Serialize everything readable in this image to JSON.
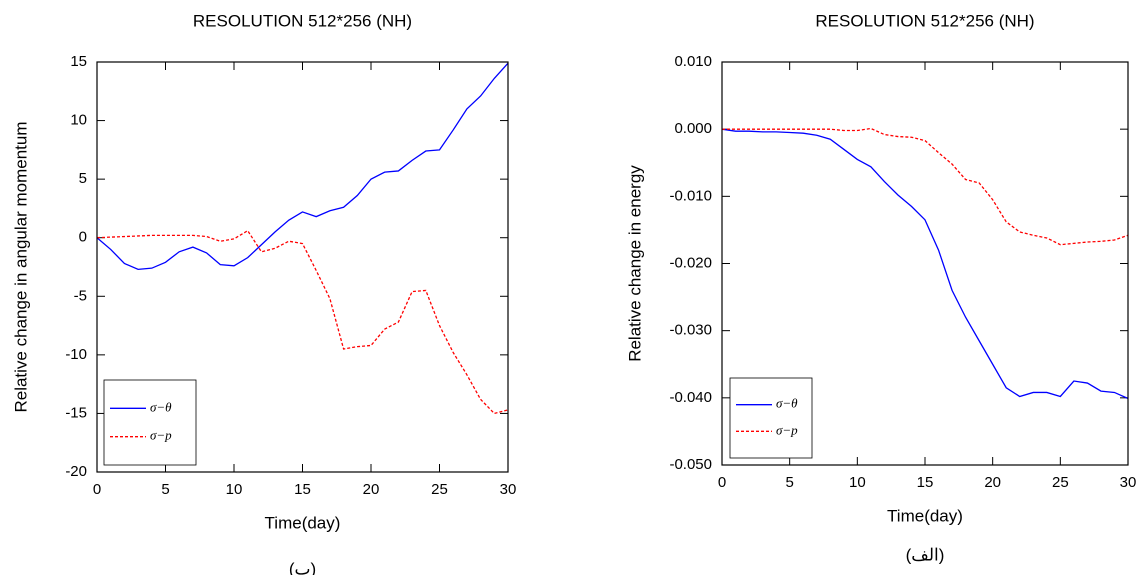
{
  "chart_data": [
    {
      "type": "line",
      "title": "RESOLUTION 512*256 (NH)",
      "x_label": "Time(day)",
      "y_label": "Relative change in angular momentum",
      "caption": "(ب)",
      "x": [
        0,
        1,
        2,
        3,
        4,
        5,
        6,
        7,
        8,
        9,
        10,
        11,
        12,
        13,
        14,
        15,
        16,
        17,
        18,
        19,
        20,
        21,
        22,
        23,
        24,
        25,
        26,
        27,
        28,
        29,
        30
      ],
      "series": [
        {
          "name": "σ−θ",
          "color": "#0000ff",
          "dash": "solid",
          "values": [
            0,
            -1,
            -2.2,
            -2.7,
            -2.6,
            -2.1,
            -1.2,
            -0.8,
            -1.3,
            -2.3,
            -2.4,
            -1.7,
            -0.6,
            0.5,
            1.5,
            2.2,
            1.8,
            2.3,
            2.6,
            3.6,
            5.0,
            5.6,
            5.7,
            6.6,
            7.4,
            7.5,
            9.2,
            11,
            12.1,
            13.6,
            14.9
          ]
        },
        {
          "name": "σ−p",
          "color": "#ff0000",
          "dash": "dashed",
          "values": [
            0,
            0.05,
            0.1,
            0.15,
            0.2,
            0.2,
            0.2,
            0.2,
            0.1,
            -0.3,
            -0.1,
            0.6,
            -1.2,
            -0.9,
            -0.3,
            -0.5,
            -2.8,
            -5.2,
            -9.5,
            -9.3,
            -9.2,
            -7.8,
            -7.2,
            -4.6,
            -4.5,
            -7.5,
            -9.8,
            -11.7,
            -13.8,
            -15,
            -14.7
          ]
        }
      ],
      "xlim": [
        0,
        30
      ],
      "xticks": [
        0,
        5,
        10,
        15,
        20,
        25,
        30
      ],
      "ylim": [
        -20,
        15
      ],
      "yticks": [
        -20,
        -15,
        -10,
        -5,
        0,
        5,
        10,
        15
      ],
      "legend": "lower left"
    },
    {
      "type": "line",
      "title": "RESOLUTION 512*256 (NH)",
      "x_label": "Time(day)",
      "y_label": "Relative change in energy",
      "caption": "(الف)",
      "x": [
        0,
        1,
        2,
        3,
        4,
        5,
        6,
        7,
        8,
        9,
        10,
        11,
        12,
        13,
        14,
        15,
        16,
        17,
        18,
        19,
        20,
        21,
        22,
        23,
        24,
        25,
        26,
        27,
        28,
        29,
        30
      ],
      "series": [
        {
          "name": "σ−θ",
          "color": "#0000ff",
          "dash": "solid",
          "values": [
            0,
            -0.0003,
            -0.0003,
            -0.0004,
            -0.0004,
            -0.0005,
            -0.0006,
            -0.0009,
            -0.0015,
            -0.003,
            -0.0045,
            -0.0056,
            -0.0078,
            -0.0098,
            -0.0115,
            -0.0135,
            -0.018,
            -0.024,
            -0.028,
            -0.0315,
            -0.035,
            -0.0385,
            -0.0398,
            -0.0392,
            -0.0392,
            -0.0398,
            -0.0375,
            -0.0378,
            -0.039,
            -0.0392,
            -0.0401
          ]
        },
        {
          "name": "σ−p",
          "color": "#ff0000",
          "dash": "dashed",
          "values": [
            0,
            0,
            0,
            0,
            0,
            0,
            0,
            0,
            0,
            -0.0002,
            -0.0002,
            0.0001,
            -0.0008,
            -0.0011,
            -0.0012,
            -0.0017,
            -0.0035,
            -0.0052,
            -0.0075,
            -0.008,
            -0.0105,
            -0.0138,
            -0.0153,
            -0.0158,
            -0.0162,
            -0.0172,
            -0.017,
            -0.0168,
            -0.0167,
            -0.0165,
            -0.0158
          ]
        }
      ],
      "xlim": [
        0,
        30
      ],
      "xticks": [
        0,
        5,
        10,
        15,
        20,
        25,
        30
      ],
      "ylim": [
        -0.05,
        0.01
      ],
      "yticks": [
        {
          "value": -0.05,
          "label": "-0.050"
        },
        {
          "value": -0.04,
          "label": "-0.040"
        },
        {
          "value": -0.03,
          "label": "-0.030"
        },
        {
          "value": -0.02,
          "label": "-0.020"
        },
        {
          "value": -0.01,
          "label": "-0.010"
        },
        {
          "value": 0,
          "label": "0.000"
        },
        {
          "value": 0.01,
          "label": "0.010"
        }
      ],
      "legend": "lower left"
    }
  ]
}
